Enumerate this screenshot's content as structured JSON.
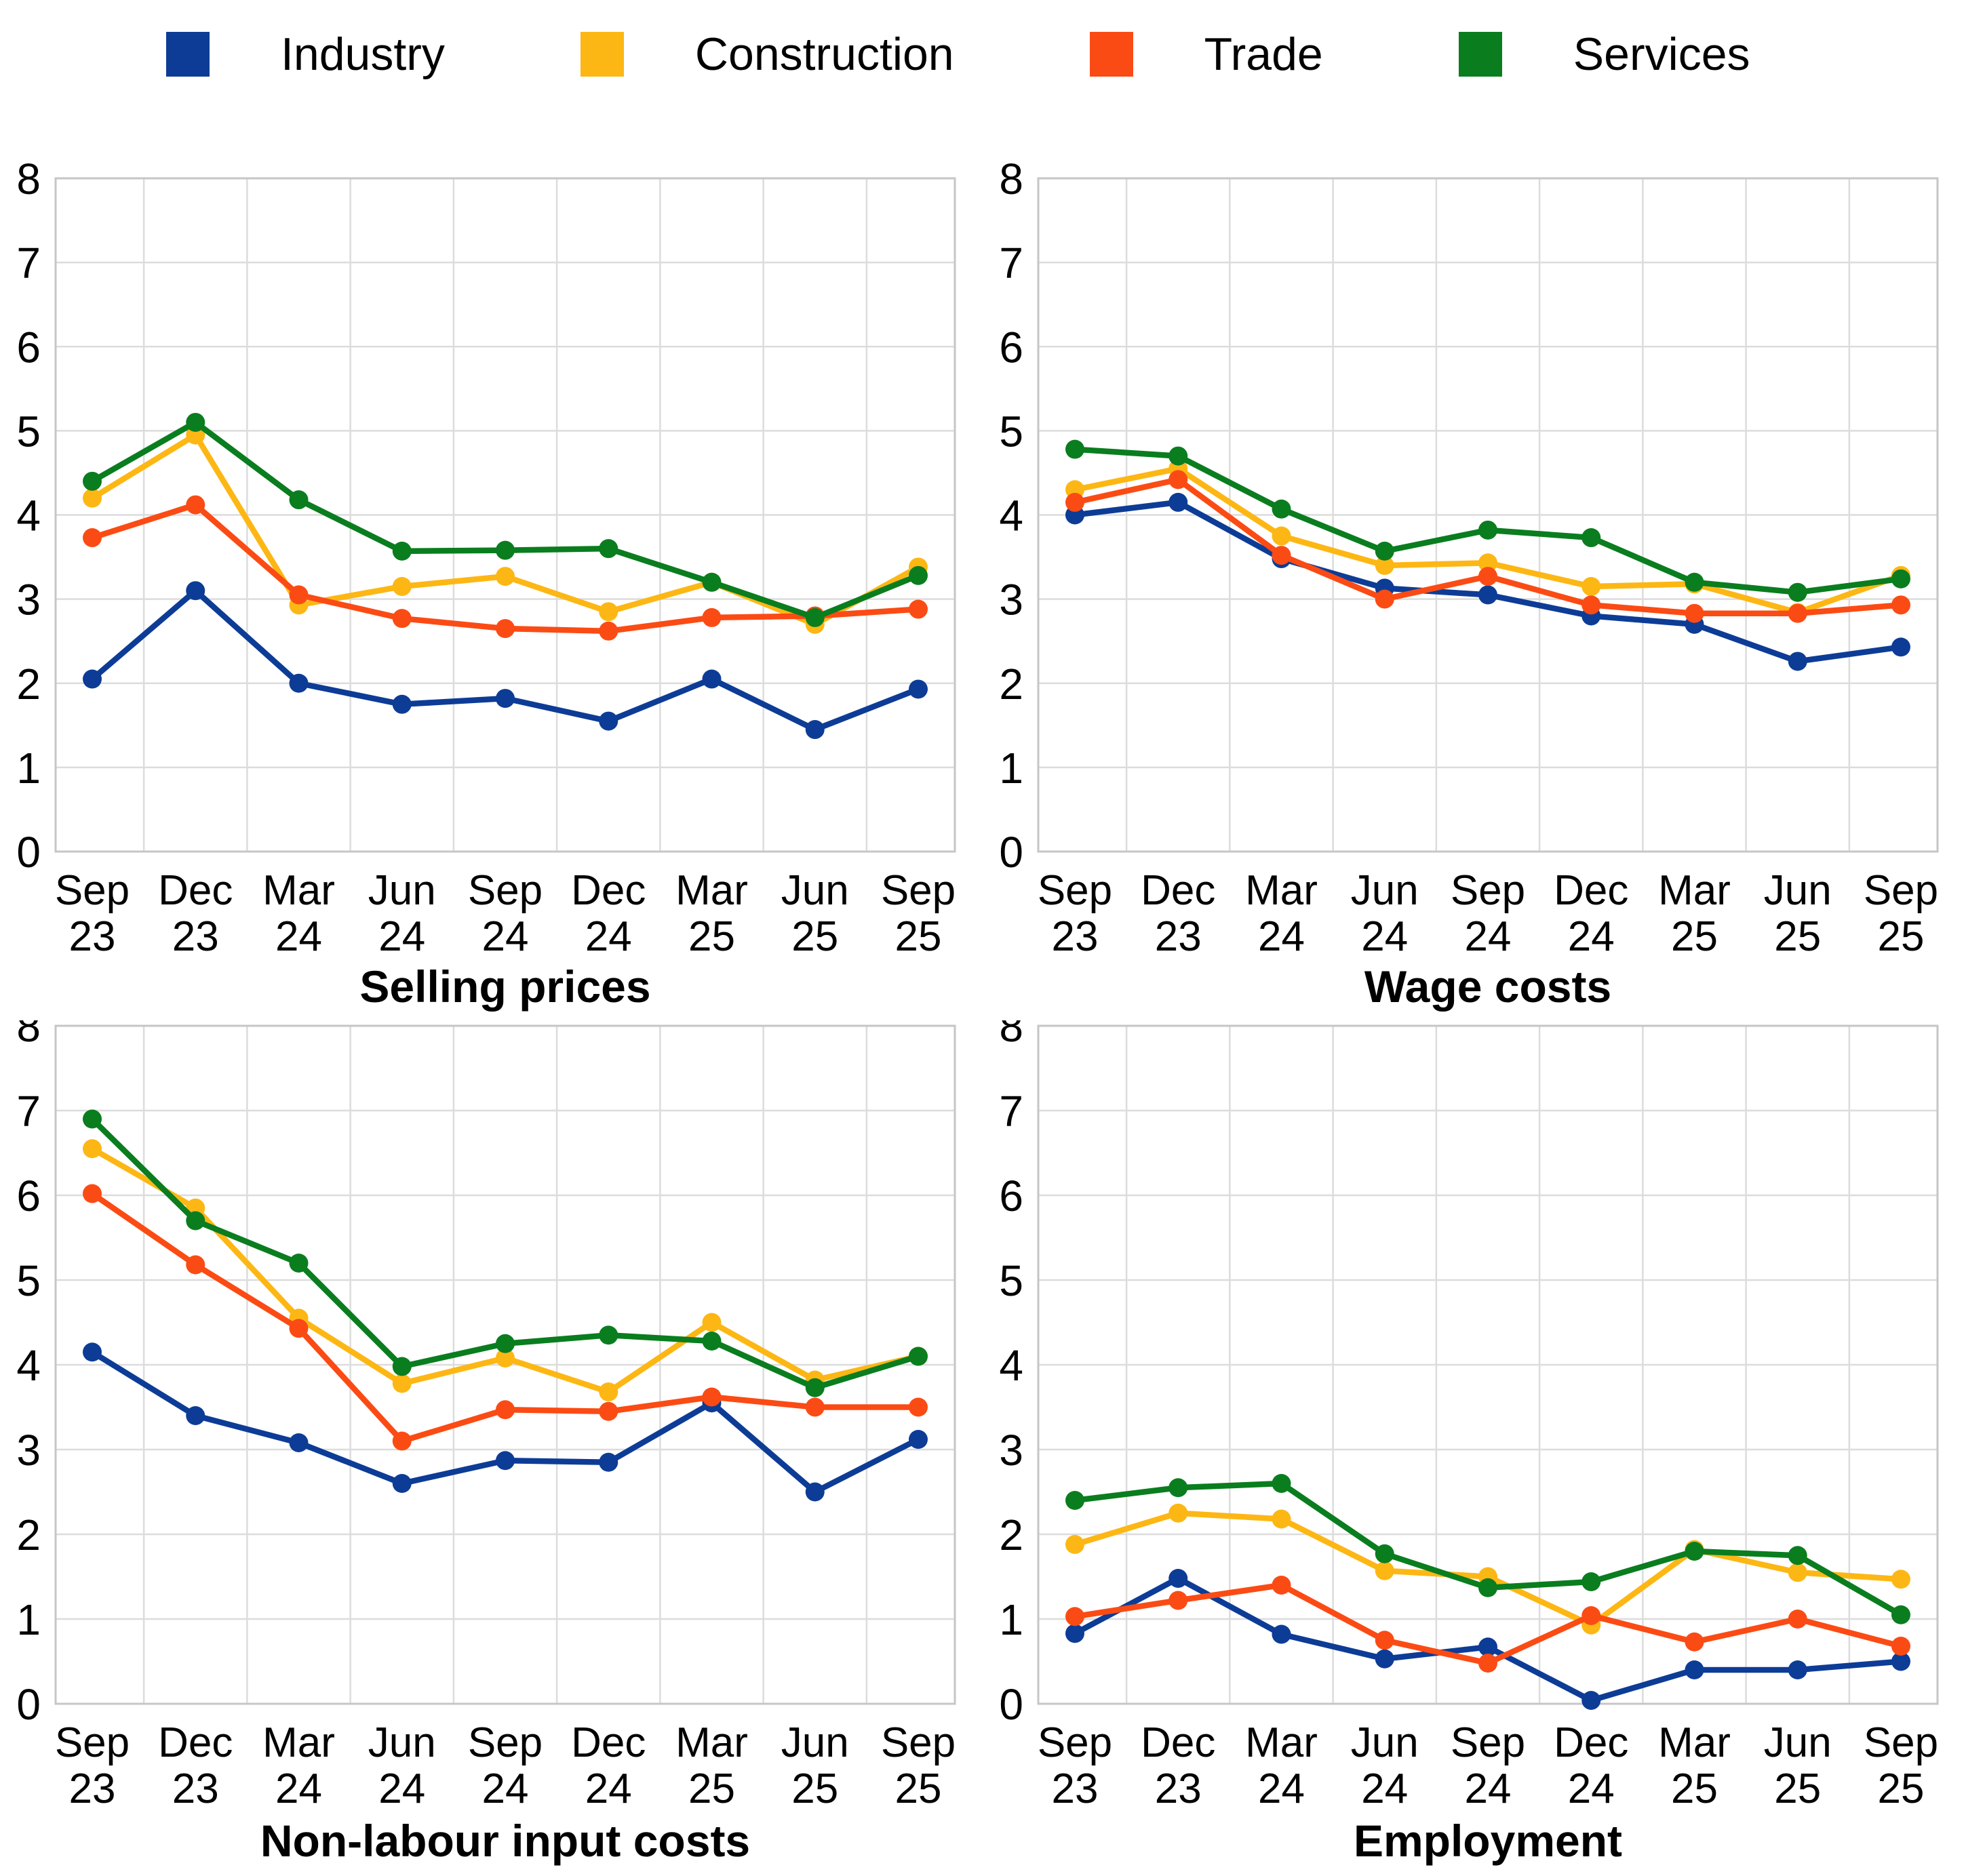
{
  "legend": {
    "items": [
      {
        "label": "Industry",
        "color": "#0D3C96"
      },
      {
        "label": "Construction",
        "color": "#FDB714"
      },
      {
        "label": "Trade",
        "color": "#FB4B14"
      },
      {
        "label": "Services",
        "color": "#0A7D1F"
      }
    ]
  },
  "categories": [
    "Sep 23",
    "Dec 23",
    "Mar 24",
    "Jun 24",
    "Sep 24",
    "Dec 24",
    "Mar 25",
    "Jun 25",
    "Sep 25"
  ],
  "y_axis": {
    "min": 0,
    "max": 8,
    "ticks": [
      0,
      1,
      2,
      3,
      4,
      5,
      6,
      7,
      8
    ]
  },
  "chart_data": [
    {
      "type": "line",
      "title": "Selling prices",
      "position": "top-left",
      "categories": [
        "Sep 23",
        "Dec 23",
        "Mar 24",
        "Jun 24",
        "Sep 24",
        "Dec 24",
        "Mar 25",
        "Jun 25",
        "Sep 25"
      ],
      "ylim": [
        0,
        8
      ],
      "grid": true,
      "legend_position": "top",
      "series": [
        {
          "name": "Industry",
          "color": "#0D3C96",
          "values": [
            2.05,
            3.1,
            2.0,
            1.75,
            1.82,
            1.55,
            2.05,
            1.45,
            1.93
          ]
        },
        {
          "name": "Construction",
          "color": "#FDB714",
          "values": [
            4.2,
            4.95,
            2.93,
            3.15,
            3.27,
            2.85,
            3.2,
            2.7,
            3.38
          ]
        },
        {
          "name": "Trade",
          "color": "#FB4B14",
          "values": [
            3.73,
            4.12,
            3.05,
            2.77,
            2.65,
            2.62,
            2.78,
            2.8,
            2.88
          ]
        },
        {
          "name": "Services",
          "color": "#0A7D1F",
          "values": [
            4.4,
            5.1,
            4.18,
            3.57,
            3.58,
            3.6,
            3.2,
            2.78,
            3.28
          ]
        }
      ]
    },
    {
      "type": "line",
      "title": "Wage costs",
      "position": "top-right",
      "categories": [
        "Sep 23",
        "Dec 23",
        "Mar 24",
        "Jun 24",
        "Sep 24",
        "Dec 24",
        "Mar 25",
        "Jun 25",
        "Sep 25"
      ],
      "ylim": [
        0,
        8
      ],
      "grid": true,
      "legend_position": "top",
      "series": [
        {
          "name": "Industry",
          "color": "#0D3C96",
          "values": [
            4.0,
            4.15,
            3.48,
            3.13,
            3.05,
            2.8,
            2.7,
            2.26,
            2.43
          ]
        },
        {
          "name": "Construction",
          "color": "#FDB714",
          "values": [
            4.3,
            4.55,
            3.75,
            3.4,
            3.43,
            3.15,
            3.18,
            2.84,
            3.28
          ]
        },
        {
          "name": "Trade",
          "color": "#FB4B14",
          "values": [
            4.15,
            4.42,
            3.52,
            3.0,
            3.27,
            2.93,
            2.83,
            2.83,
            2.93
          ]
        },
        {
          "name": "Services",
          "color": "#0A7D1F",
          "values": [
            4.78,
            4.7,
            4.07,
            3.57,
            3.82,
            3.73,
            3.2,
            3.08,
            3.24
          ]
        }
      ]
    },
    {
      "type": "line",
      "title": "Non-labour input costs",
      "position": "bottom-left",
      "categories": [
        "Sep 23",
        "Dec 23",
        "Mar 24",
        "Jun 24",
        "Sep 24",
        "Dec 24",
        "Mar 25",
        "Jun 25",
        "Sep 25"
      ],
      "ylim": [
        0,
        8
      ],
      "grid": true,
      "legend_position": "top",
      "series": [
        {
          "name": "Industry",
          "color": "#0D3C96",
          "values": [
            4.15,
            3.4,
            3.08,
            2.6,
            2.87,
            2.85,
            3.55,
            2.5,
            3.12
          ]
        },
        {
          "name": "Construction",
          "color": "#FDB714",
          "values": [
            6.55,
            5.85,
            4.55,
            3.78,
            4.08,
            3.68,
            4.5,
            3.82,
            4.1
          ]
        },
        {
          "name": "Trade",
          "color": "#FB4B14",
          "values": [
            6.02,
            5.18,
            4.43,
            3.1,
            3.47,
            3.45,
            3.62,
            3.5,
            3.5
          ]
        },
        {
          "name": "Services",
          "color": "#0A7D1F",
          "values": [
            6.9,
            5.7,
            5.2,
            3.98,
            4.25,
            4.35,
            4.28,
            3.73,
            4.1
          ]
        }
      ]
    },
    {
      "type": "line",
      "title": "Employment",
      "position": "bottom-right",
      "categories": [
        "Sep 23",
        "Dec 23",
        "Mar 24",
        "Jun 24",
        "Sep 24",
        "Dec 24",
        "Mar 25",
        "Jun 25",
        "Sep 25"
      ],
      "ylim": [
        0,
        8
      ],
      "grid": true,
      "legend_position": "top",
      "series": [
        {
          "name": "Industry",
          "color": "#0D3C96",
          "values": [
            0.83,
            1.48,
            0.82,
            0.53,
            0.67,
            0.04,
            0.4,
            0.4,
            0.5
          ]
        },
        {
          "name": "Construction",
          "color": "#FDB714",
          "values": [
            1.88,
            2.25,
            2.18,
            1.57,
            1.5,
            0.93,
            1.82,
            1.55,
            1.47
          ]
        },
        {
          "name": "Trade",
          "color": "#FB4B14",
          "values": [
            1.03,
            1.22,
            1.4,
            0.75,
            0.48,
            1.04,
            0.73,
            1.0,
            0.68
          ]
        },
        {
          "name": "Services",
          "color": "#0A7D1F",
          "values": [
            2.4,
            2.55,
            2.6,
            1.77,
            1.37,
            1.44,
            1.8,
            1.75,
            1.05
          ]
        }
      ]
    }
  ]
}
